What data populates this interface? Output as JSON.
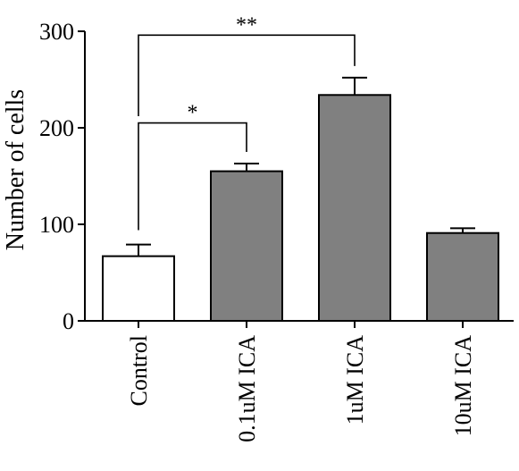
{
  "chart_data": {
    "type": "bar",
    "title": "",
    "xlabel": "",
    "ylabel": "Number of cells",
    "ylim": [
      0,
      300
    ],
    "yticks": [
      0,
      100,
      200,
      300
    ],
    "categories": [
      "Control",
      "0.1uM ICA",
      "1uM ICA",
      "10uM ICA"
    ],
    "values": [
      67,
      155,
      234,
      91
    ],
    "errors": [
      12,
      8,
      18,
      5
    ],
    "bar_colors": [
      "#ffffff",
      "#808080",
      "#808080",
      "#808080"
    ],
    "grid": false,
    "legend": "none",
    "significance": [
      {
        "from": 0,
        "to": 1,
        "label": "*"
      },
      {
        "from": 0,
        "to": 2,
        "label": "**"
      }
    ]
  }
}
